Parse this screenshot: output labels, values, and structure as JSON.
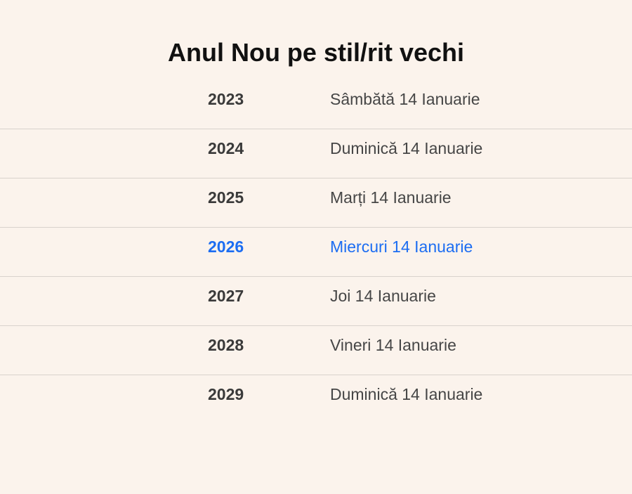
{
  "title": "Anul Nou pe stil/rit vechi",
  "colors": {
    "background": "#fbf3ec",
    "title_text": "#111111",
    "year_text": "#3a3a3a",
    "day_text": "#464646",
    "divider": "#d8d2cc",
    "highlight": "#1c6df2"
  },
  "rows": [
    {
      "year": "2023",
      "day": "Sâmbătă 14 Ianuarie",
      "highlighted": false
    },
    {
      "year": "2024",
      "day": "Duminică 14 Ianuarie",
      "highlighted": false
    },
    {
      "year": "2025",
      "day": "Marți 14 Ianuarie",
      "highlighted": false
    },
    {
      "year": "2026",
      "day": "Miercuri 14 Ianuarie",
      "highlighted": true
    },
    {
      "year": "2027",
      "day": "Joi 14 Ianuarie",
      "highlighted": false
    },
    {
      "year": "2028",
      "day": "Vineri 14 Ianuarie",
      "highlighted": false
    },
    {
      "year": "2029",
      "day": "Duminică 14 Ianuarie",
      "highlighted": false
    }
  ]
}
